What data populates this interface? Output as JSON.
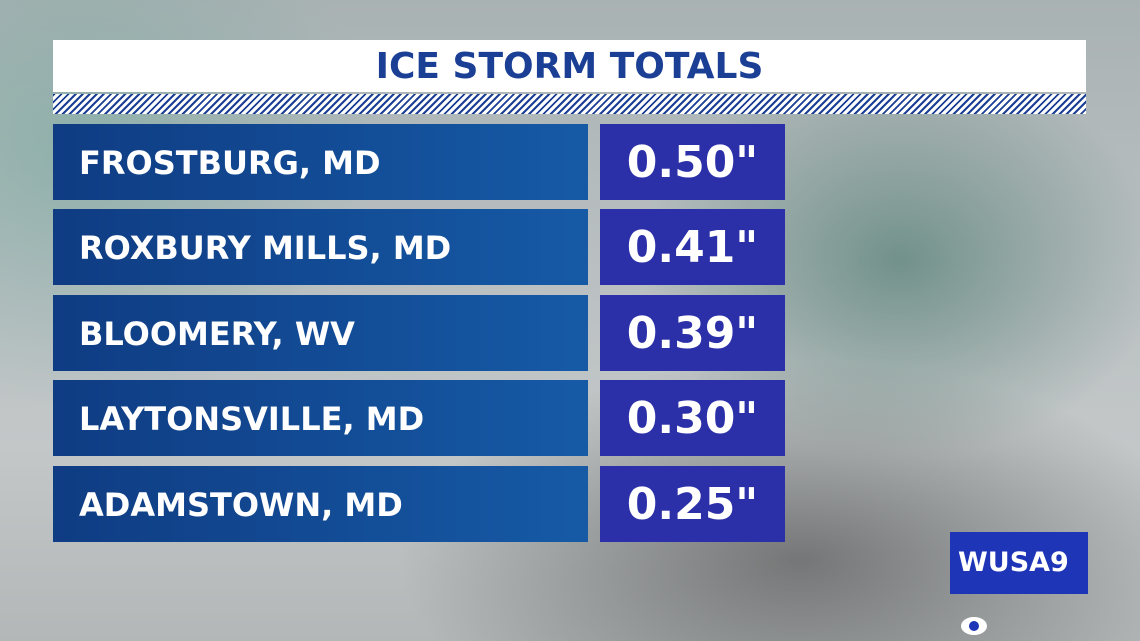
{
  "header": {
    "title": "ICE STORM TOTALS"
  },
  "table": {
    "rows": [
      [
        "FROSTBURG, MD",
        "0.50\""
      ],
      [
        "ROXBURY MILLS, MD",
        "0.41\""
      ],
      [
        "BLOOMERY, WV",
        "0.39\""
      ],
      [
        "LAYTONSVILLE, MD",
        "0.30\""
      ],
      [
        "ADAMSTOWN, MD",
        "0.25\""
      ]
    ]
  },
  "logo": {
    "text": "WUSA9"
  }
}
